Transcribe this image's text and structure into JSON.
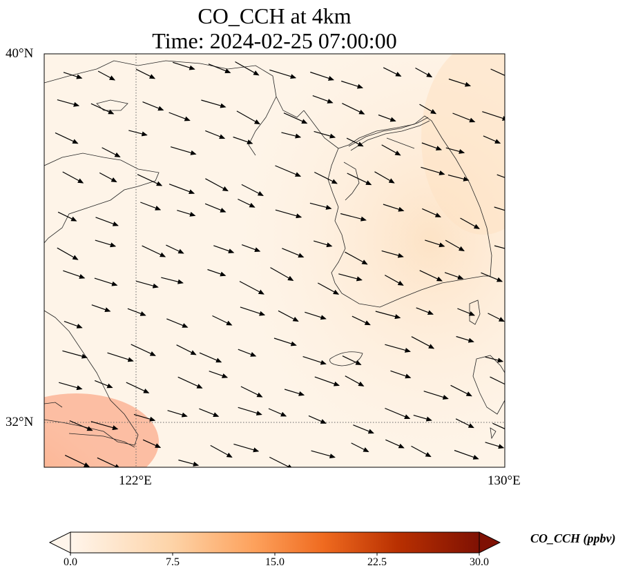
{
  "title_line1": "CO_CCH at 4km",
  "title_line2": "Time: 2024-02-25 07:00:00",
  "lat_labels": [
    "40°N",
    "32°N"
  ],
  "lon_labels": [
    "122°E",
    "130°E"
  ],
  "colorbar": {
    "label": "CO_CCH (ppbv)",
    "ticks": [
      "0.0",
      "7.5",
      "15.0",
      "22.5",
      "30.0"
    ],
    "min": 0,
    "max": 30,
    "colors": [
      "#fff5eb",
      "#fdd9b4",
      "#fda762",
      "#f3701b",
      "#c54102",
      "#7f2704"
    ]
  },
  "map_extent": {
    "lon": [
      120,
      130
    ],
    "lat": [
      31,
      40
    ]
  },
  "gridlines": {
    "lon": [
      122
    ],
    "lat": [
      32
    ],
    "style": "dotted"
  },
  "field_description": "CO concentration low over Yellow Sea, elevated (~7 ppbv) over Korean Peninsula, highest (~12 ppbv) near Shanghai/Yangtze delta",
  "wind_vectors": "westerly to west-northwesterly flow across domain"
}
